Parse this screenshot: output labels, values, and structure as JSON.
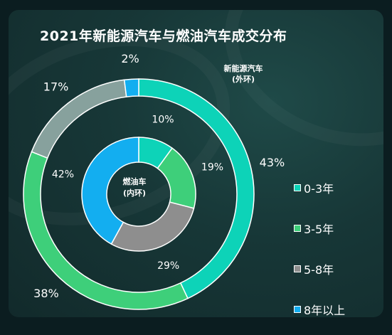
{
  "title": "2021年新能源汽车与燃油汽车成交分布",
  "chart_data": {
    "type": "pie",
    "title": "2021年新能源汽车与燃油汽车成交分布",
    "categories": [
      "0-3年",
      "3-5年",
      "5-8年",
      "8年以上"
    ],
    "colors": [
      "#0dd3b8",
      "#3ecf7a",
      "#8e8e8e",
      "#13aef0"
    ],
    "outer_series": {
      "name": "新能源汽车\n(外环)",
      "name_line1": "新能源汽车",
      "name_line2": "(外环)",
      "values": [
        43,
        38,
        17,
        2
      ],
      "colors": [
        "#0dd3b8",
        "#3ecf7a",
        "#87a19d",
        "#13aef0"
      ],
      "labels": [
        "43%",
        "38%",
        "17%",
        "2%"
      ]
    },
    "inner_series": {
      "name": "燃油车\n(内环)",
      "name_line1": "燃油车",
      "name_line2": "(内环)",
      "values": [
        10,
        19,
        29,
        42
      ],
      "colors": [
        "#0dd3b8",
        "#3ecf7a",
        "#8e8e8e",
        "#13aef0"
      ],
      "labels": [
        "10%",
        "19%",
        "29%",
        "42%"
      ]
    },
    "legend_position": "right"
  }
}
